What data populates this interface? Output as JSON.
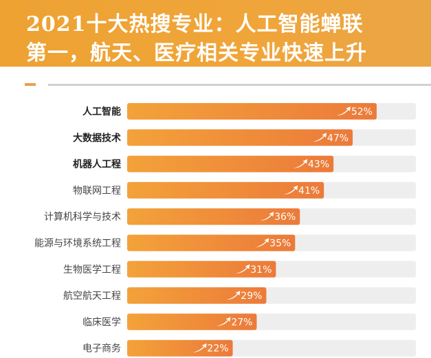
{
  "header": {
    "title_line1": "2021十大热搜专业：人工智能蝉联",
    "title_line2": "第一，航天、医疗相关专业快速上升"
  },
  "chart_data": {
    "type": "bar",
    "orientation": "horizontal",
    "categories": [
      "人工智能",
      "大数据技术",
      "机器人工程",
      "物联网工程",
      "计算机科学与技术",
      "能源与环境系统工程",
      "生物医学工程",
      "航空航天工程",
      "临床医学",
      "电子商务"
    ],
    "values": [
      52,
      47,
      43,
      41,
      36,
      35,
      31,
      29,
      27,
      22
    ],
    "data_labels": [
      "52%",
      "47%",
      "43%",
      "41%",
      "36%",
      "35%",
      "31%",
      "29%",
      "27%",
      "22%"
    ],
    "bold_categories": 3,
    "icon": "trend-up-arrow-icon",
    "colors": {
      "bar_start": "#f3a23a",
      "bar_end": "#ec7a3a",
      "track": "#eeeeee",
      "label": "#444444"
    }
  }
}
